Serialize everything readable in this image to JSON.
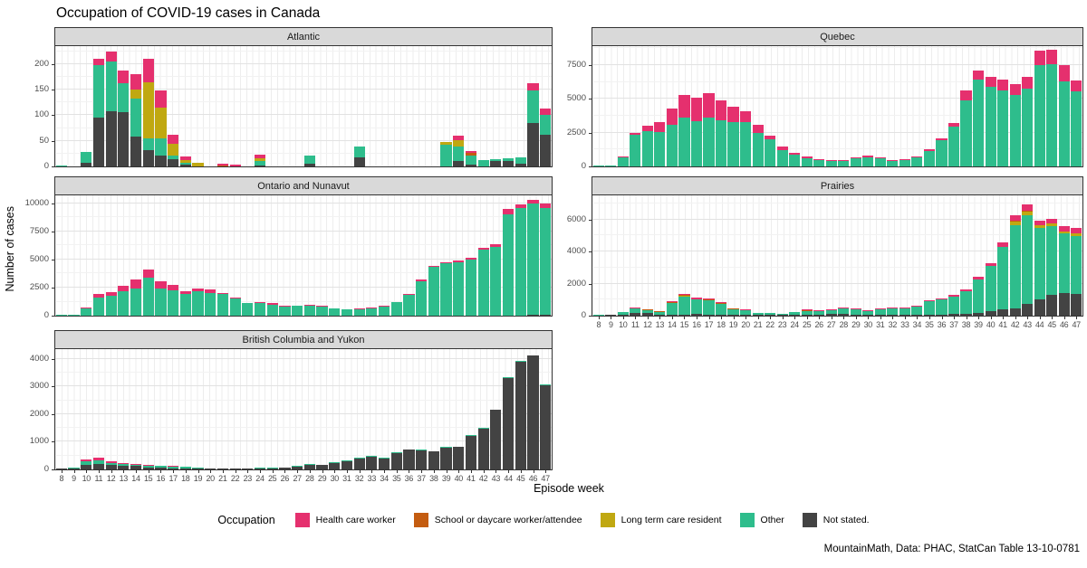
{
  "title": "Occupation of COVID-19 cases in Canada",
  "caption": "MountainMath, Data: PHAC, StatCan Table 13-10-0781",
  "axis": {
    "x_label": "Episode week",
    "y_label": "Number of cases"
  },
  "legend": {
    "title": "Occupation",
    "items": [
      {
        "key": "hcw",
        "label": "Health care worker",
        "color": "#E5306E"
      },
      {
        "key": "school",
        "label": "School or daycare worker/attendee",
        "color": "#C45C10"
      },
      {
        "key": "ltc",
        "label": "Long term care resident",
        "color": "#C0A811"
      },
      {
        "key": "other",
        "label": "Other",
        "color": "#2EBD8C"
      },
      {
        "key": "not_stated",
        "label": "Not stated.",
        "color": "#434343"
      }
    ]
  },
  "chart_data": {
    "type": "bar",
    "stacked": true,
    "grid": true,
    "x_label": "Episode week",
    "y_label": "Number of cases",
    "weeks": [
      8,
      9,
      10,
      11,
      12,
      13,
      14,
      15,
      16,
      17,
      18,
      19,
      20,
      21,
      22,
      23,
      24,
      25,
      26,
      27,
      28,
      29,
      30,
      31,
      32,
      33,
      34,
      35,
      36,
      37,
      38,
      39,
      40,
      41,
      42,
      43,
      44,
      45,
      46,
      47
    ],
    "series_order": [
      "not_stated",
      "other",
      "ltc",
      "school",
      "hcw"
    ],
    "series_names": {
      "hcw": "Health care worker",
      "school": "School or daycare worker/attendee",
      "ltc": "Long term care resident",
      "other": "Other",
      "not_stated": "Not stated."
    },
    "colors": {
      "hcw": "#E5306E",
      "school": "#C45C10",
      "ltc": "#C0A811",
      "other": "#2EBD8C",
      "not_stated": "#434343"
    },
    "panels": [
      {
        "title": "Atlantic",
        "ylim": [
          0,
          235
        ],
        "yticks": [
          0,
          50,
          100,
          150,
          200
        ],
        "show_x_labels": false,
        "series": {
          "not_stated": [
            0,
            0,
            7,
            95,
            107,
            106,
            58,
            32,
            22,
            14,
            3,
            0,
            0,
            0,
            0,
            0,
            2,
            0,
            0,
            0,
            5,
            0,
            0,
            0,
            18,
            0,
            0,
            0,
            0,
            0,
            0,
            0,
            11,
            4,
            0,
            10,
            10,
            6,
            85,
            62
          ],
          "other": [
            2,
            0,
            21,
            103,
            98,
            57,
            74,
            23,
            33,
            8,
            5,
            0,
            0,
            0,
            0,
            0,
            8,
            0,
            0,
            0,
            17,
            0,
            0,
            0,
            21,
            0,
            0,
            0,
            0,
            0,
            0,
            42,
            28,
            18,
            12,
            5,
            6,
            12,
            63,
            38
          ],
          "ltc": [
            0,
            0,
            0,
            0,
            0,
            0,
            18,
            110,
            60,
            22,
            5,
            8,
            0,
            0,
            0,
            0,
            6,
            0,
            0,
            0,
            0,
            0,
            0,
            0,
            0,
            0,
            0,
            0,
            0,
            0,
            0,
            6,
            12,
            0,
            0,
            0,
            0,
            0,
            0,
            0
          ],
          "school": [
            0,
            0,
            0,
            0,
            0,
            0,
            0,
            0,
            0,
            0,
            0,
            0,
            0,
            2,
            0,
            0,
            0,
            0,
            0,
            0,
            0,
            0,
            0,
            0,
            0,
            0,
            0,
            0,
            0,
            0,
            0,
            0,
            0,
            4,
            0,
            0,
            0,
            0,
            0,
            0
          ],
          "hcw": [
            0,
            0,
            0,
            13,
            20,
            24,
            30,
            45,
            33,
            18,
            6,
            0,
            0,
            3,
            3,
            0,
            8,
            0,
            0,
            0,
            0,
            0,
            0,
            0,
            0,
            0,
            0,
            0,
            0,
            0,
            0,
            0,
            9,
            4,
            0,
            0,
            0,
            0,
            15,
            13
          ]
        }
      },
      {
        "title": "Quebec",
        "ylim": [
          0,
          8900
        ],
        "yticks": [
          0,
          2500,
          5000,
          7500
        ],
        "show_x_labels": false,
        "series": {
          "other": [
            30,
            40,
            670,
            2350,
            2600,
            2550,
            3100,
            3600,
            3350,
            3600,
            3400,
            3300,
            3250,
            2500,
            2000,
            1200,
            850,
            600,
            450,
            430,
            420,
            600,
            690,
            610,
            390,
            490,
            690,
            1160,
            1920,
            2920,
            4910,
            6460,
            5860,
            5600,
            5310,
            5790,
            7510,
            7570,
            6300,
            5540
          ],
          "hcw": [
            0,
            0,
            30,
            150,
            400,
            750,
            1200,
            1700,
            1750,
            1800,
            1500,
            1100,
            850,
            600,
            300,
            250,
            150,
            150,
            100,
            50,
            80,
            100,
            110,
            90,
            60,
            60,
            60,
            140,
            180,
            280,
            690,
            640,
            740,
            850,
            790,
            860,
            1040,
            1080,
            1200,
            810
          ]
        }
      },
      {
        "title": "Ontario and Nunavut",
        "ylim": [
          0,
          10700
        ],
        "yticks": [
          0,
          2500,
          5000,
          7500,
          10000
        ],
        "show_x_labels": false,
        "series": {
          "not_stated": [
            0,
            0,
            0,
            0,
            0,
            0,
            0,
            0,
            0,
            0,
            0,
            0,
            0,
            0,
            0,
            0,
            0,
            0,
            0,
            0,
            0,
            0,
            0,
            0,
            0,
            0,
            0,
            0,
            0,
            0,
            0,
            0,
            0,
            0,
            0,
            0,
            0,
            0,
            100,
            60
          ],
          "other": [
            30,
            120,
            670,
            1650,
            1800,
            2150,
            2450,
            3350,
            2400,
            2250,
            1950,
            2200,
            2050,
            1900,
            1550,
            1100,
            1120,
            1000,
            820,
            870,
            920,
            830,
            630,
            530,
            580,
            680,
            820,
            1200,
            1870,
            3100,
            4330,
            4650,
            4780,
            5020,
            5850,
            6100,
            9050,
            9600,
            9850,
            9540
          ],
          "hcw": [
            0,
            0,
            30,
            250,
            300,
            550,
            750,
            800,
            650,
            450,
            200,
            250,
            250,
            150,
            100,
            50,
            80,
            100,
            30,
            30,
            30,
            20,
            20,
            20,
            20,
            20,
            30,
            50,
            80,
            100,
            120,
            100,
            120,
            130,
            150,
            300,
            450,
            300,
            350,
            400
          ]
        }
      },
      {
        "title": "Prairies",
        "ylim": [
          0,
          7500
        ],
        "yticks": [
          0,
          2000,
          4000,
          6000
        ],
        "show_x_labels": true,
        "series": {
          "not_stated": [
            0,
            10,
            30,
            150,
            160,
            20,
            30,
            40,
            100,
            80,
            40,
            20,
            15,
            10,
            10,
            10,
            15,
            20,
            20,
            90,
            110,
            60,
            30,
            40,
            50,
            60,
            60,
            60,
            70,
            90,
            120,
            160,
            260,
            390,
            480,
            760,
            1040,
            1310,
            1440,
            1350
          ],
          "other": [
            10,
            30,
            180,
            280,
            200,
            210,
            770,
            1160,
            920,
            900,
            720,
            380,
            320,
            150,
            120,
            70,
            180,
            270,
            235,
            265,
            350,
            330,
            250,
            380,
            410,
            420,
            500,
            830,
            960,
            1120,
            1410,
            2120,
            2840,
            3880,
            5150,
            5520,
            4450,
            4260,
            3680,
            3600
          ],
          "ltc": [
            0,
            0,
            0,
            0,
            0,
            0,
            0,
            60,
            0,
            0,
            0,
            0,
            0,
            0,
            0,
            0,
            0,
            0,
            0,
            0,
            0,
            0,
            0,
            0,
            0,
            0,
            0,
            0,
            0,
            0,
            0,
            0,
            0,
            0,
            250,
            220,
            150,
            190,
            150,
            200
          ],
          "school": [
            0,
            0,
            0,
            20,
            30,
            30,
            30,
            40,
            0,
            40,
            30,
            25,
            0,
            0,
            0,
            0,
            0,
            20,
            15,
            0,
            0,
            0,
            0,
            0,
            0,
            0,
            0,
            0,
            0,
            0,
            0,
            0,
            0,
            30,
            30,
            30,
            0,
            0,
            0,
            0
          ],
          "hcw": [
            0,
            0,
            20,
            50,
            30,
            20,
            40,
            80,
            100,
            30,
            30,
            25,
            15,
            0,
            0,
            0,
            15,
            30,
            20,
            25,
            40,
            30,
            20,
            30,
            30,
            40,
            40,
            60,
            70,
            90,
            120,
            150,
            160,
            260,
            350,
            380,
            300,
            280,
            300,
            330
          ]
        }
      },
      {
        "title": "British Columbia and Yukon",
        "ylim": [
          0,
          4350
        ],
        "yticks": [
          0,
          1000,
          2000,
          3000,
          4000
        ],
        "show_x_labels": true,
        "series": {
          "not_stated": [
            5,
            15,
            180,
            200,
            150,
            130,
            120,
            80,
            60,
            50,
            50,
            35,
            30,
            25,
            25,
            30,
            40,
            50,
            60,
            100,
            170,
            160,
            240,
            310,
            410,
            460,
            395,
            595,
            715,
            695,
            645,
            785,
            805,
            1225,
            1485,
            2155,
            3315,
            3895,
            4115,
            3045
          ],
          "other": [
            15,
            45,
            100,
            140,
            90,
            60,
            60,
            60,
            60,
            55,
            50,
            20,
            15,
            10,
            10,
            10,
            10,
            10,
            10,
            10,
            10,
            10,
            10,
            10,
            10,
            10,
            5,
            5,
            5,
            5,
            5,
            5,
            5,
            5,
            5,
            5,
            5,
            5,
            5,
            5
          ],
          "school": [
            0,
            0,
            0,
            0,
            0,
            10,
            0,
            0,
            0,
            0,
            0,
            0,
            0,
            0,
            0,
            0,
            0,
            0,
            0,
            0,
            0,
            0,
            0,
            0,
            0,
            0,
            0,
            0,
            0,
            0,
            0,
            0,
            0,
            0,
            0,
            0,
            0,
            0,
            0,
            0
          ],
          "hcw": [
            0,
            0,
            70,
            90,
            60,
            20,
            10,
            10,
            10,
            5,
            0,
            0,
            0,
            0,
            0,
            0,
            0,
            0,
            0,
            0,
            0,
            0,
            0,
            0,
            0,
            0,
            0,
            0,
            0,
            0,
            0,
            0,
            0,
            0,
            0,
            0,
            0,
            0,
            0,
            0
          ]
        }
      }
    ]
  }
}
